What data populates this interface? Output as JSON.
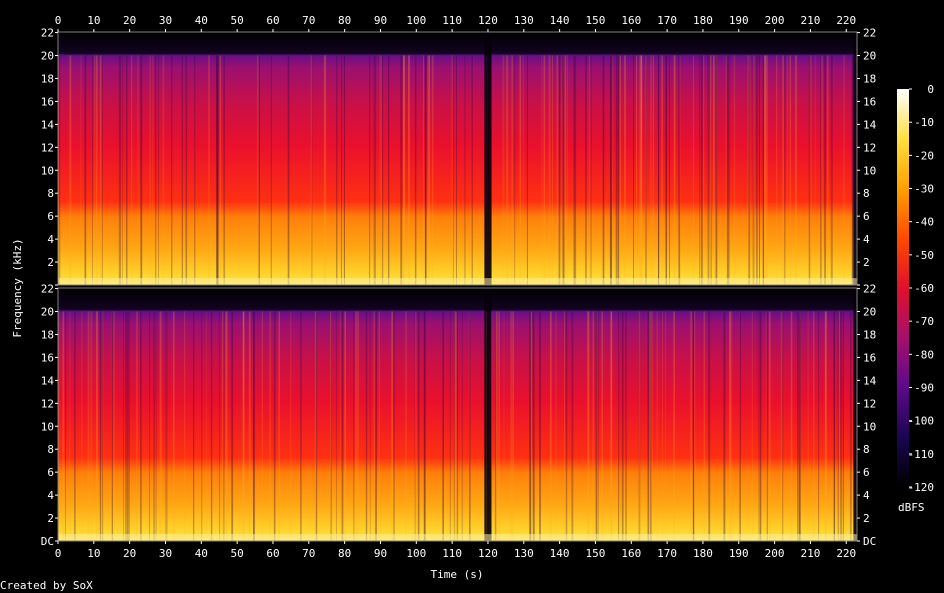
{
  "chart_data": {
    "type": "heatmap",
    "title": "",
    "xlabel": "Time (s)",
    "ylabel": "Frequency (kHz)",
    "credit": "Created by SoX",
    "x_ticks": [
      0,
      10,
      20,
      30,
      40,
      50,
      60,
      70,
      80,
      90,
      100,
      110,
      120,
      130,
      140,
      150,
      160,
      170,
      180,
      190,
      200,
      210,
      220
    ],
    "xlim": [
      0,
      223
    ],
    "y_ticks": [
      {
        "value": 0,
        "label": "DC"
      },
      {
        "value": 2,
        "label": "2"
      },
      {
        "value": 4,
        "label": "4"
      },
      {
        "value": 6,
        "label": "6"
      },
      {
        "value": 8,
        "label": "8"
      },
      {
        "value": 10,
        "label": "10"
      },
      {
        "value": 12,
        "label": "12"
      },
      {
        "value": 14,
        "label": "14"
      },
      {
        "value": 16,
        "label": "16"
      },
      {
        "value": 18,
        "label": "18"
      },
      {
        "value": 20,
        "label": "20"
      },
      {
        "value": 22,
        "label": "22"
      }
    ],
    "ylim": [
      0,
      22.05
    ],
    "channels": 2,
    "spectral_cutoff_khz": 20,
    "silent_gaps_s": [
      [
        119,
        121
      ],
      [
        222,
        223
      ]
    ],
    "colorbar": {
      "label": "dBFS",
      "ticks": [
        0,
        -10,
        -20,
        -30,
        -40,
        -50,
        -60,
        -70,
        -80,
        -90,
        -100,
        -110,
        -120
      ],
      "range": [
        -120,
        0
      ],
      "stops": [
        "#000000",
        "#1a0650",
        "#5c0a8a",
        "#a3106e",
        "#e0102c",
        "#ff4a00",
        "#ffa000",
        "#ffe040",
        "#ffffff"
      ]
    }
  }
}
